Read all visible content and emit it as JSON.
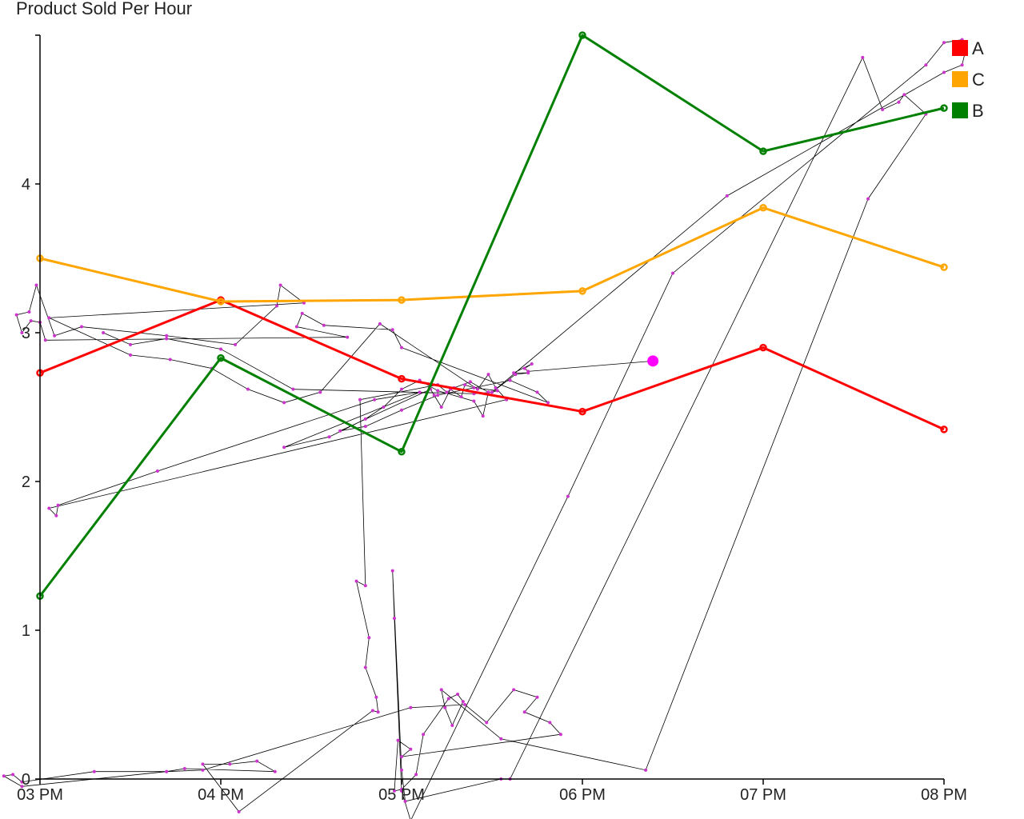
{
  "chart_data": {
    "type": "line",
    "title": "Product Sold Per Hour",
    "xlabel": "",
    "ylabel": "",
    "categories": [
      "03 PM",
      "04 PM",
      "05 PM",
      "06 PM",
      "07 PM",
      "08 PM"
    ],
    "yticks": [
      "0",
      "1",
      "2",
      "3",
      "4"
    ],
    "ylim": [
      0,
      5
    ],
    "grid": false,
    "legend_position": "top-right",
    "series": [
      {
        "name": "A",
        "color": "#ff0000",
        "values": [
          2.73,
          3.22,
          2.69,
          2.47,
          2.9,
          2.35
        ]
      },
      {
        "name": "C",
        "color": "#ffa500",
        "values": [
          3.5,
          3.21,
          3.22,
          3.28,
          3.84,
          3.44
        ]
      },
      {
        "name": "B",
        "color": "#008000",
        "values": [
          1.23,
          2.83,
          2.2,
          5.0,
          4.22,
          4.51
        ]
      }
    ],
    "overlay_trace": {
      "color": "#000000",
      "marker_color": "#cc33cc",
      "cursor_color": "#ff00ff",
      "cursor": {
        "x": 3.39,
        "y": 2.81
      },
      "points": [
        [
          3.39,
          2.81
        ],
        [
          2.7,
          2.74
        ],
        [
          2.68,
          2.76
        ],
        [
          2.72,
          2.79
        ],
        [
          2.62,
          2.73
        ],
        [
          2.7,
          2.73
        ],
        [
          2.63,
          2.72
        ],
        [
          2.5,
          2.6
        ],
        [
          2.53,
          2.61
        ],
        [
          2.4,
          2.63
        ],
        [
          2.35,
          2.65
        ],
        [
          2.33,
          2.57
        ],
        [
          2.27,
          2.62
        ],
        [
          2.22,
          2.5
        ],
        [
          2.18,
          2.58
        ],
        [
          2.16,
          2.62
        ],
        [
          1.66,
          2.34
        ],
        [
          1.8,
          2.37
        ],
        [
          2.0,
          2.48
        ],
        [
          2.2,
          2.58
        ],
        [
          2.6,
          2.68
        ],
        [
          2.75,
          2.6
        ],
        [
          2.81,
          2.53
        ],
        [
          2.0,
          2.9
        ],
        [
          1.95,
          3.02
        ],
        [
          1.57,
          3.05
        ],
        [
          1.45,
          3.13
        ],
        [
          1.42,
          3.04
        ],
        [
          1.7,
          2.97
        ],
        [
          0.03,
          2.95
        ],
        [
          0.0,
          3.07
        ],
        [
          -0.05,
          3.08
        ],
        [
          -0.1,
          3.0
        ],
        [
          -0.13,
          3.12
        ],
        [
          -0.06,
          3.14
        ],
        [
          -0.02,
          3.32
        ],
        [
          0.08,
          2.98
        ],
        [
          0.23,
          3.04
        ],
        [
          0.7,
          2.98
        ],
        [
          1.08,
          2.92
        ],
        [
          1.31,
          3.18
        ],
        [
          1.33,
          3.32
        ],
        [
          1.46,
          3.2
        ],
        [
          0.05,
          3.1
        ],
        [
          0.5,
          2.85
        ],
        [
          0.72,
          2.82
        ],
        [
          0.95,
          2.76
        ],
        [
          1.15,
          2.62
        ],
        [
          1.35,
          2.53
        ],
        [
          1.55,
          2.6
        ],
        [
          1.88,
          3.06
        ],
        [
          2.42,
          2.62
        ],
        [
          2.48,
          2.72
        ],
        [
          2.52,
          2.63
        ],
        [
          2.58,
          2.55
        ],
        [
          0.05,
          1.82
        ],
        [
          0.09,
          1.77
        ],
        [
          0.1,
          1.84
        ],
        [
          0.65,
          2.07
        ],
        [
          1.85,
          2.55
        ],
        [
          2.1,
          2.6
        ],
        [
          1.35,
          2.23
        ],
        [
          1.6,
          2.3
        ],
        [
          1.8,
          2.42
        ],
        [
          1.9,
          2.5
        ],
        [
          2.0,
          2.62
        ],
        [
          2.1,
          2.68
        ],
        [
          2.2,
          2.61
        ],
        [
          2.4,
          2.54
        ],
        [
          2.45,
          2.44
        ],
        [
          2.48,
          2.6
        ],
        [
          2.38,
          2.67
        ],
        [
          2.29,
          2.63
        ],
        [
          2.25,
          2.6
        ],
        [
          2.2,
          2.65
        ],
        [
          1.77,
          2.55
        ],
        [
          1.8,
          1.3
        ],
        [
          1.75,
          1.33
        ],
        [
          1.82,
          0.95
        ],
        [
          1.8,
          0.75
        ],
        [
          1.86,
          0.55
        ],
        [
          1.87,
          0.45
        ],
        [
          1.84,
          0.46
        ],
        [
          1.1,
          -0.22
        ],
        [
          0.9,
          0.1
        ],
        [
          1.05,
          0.1
        ],
        [
          1.2,
          0.12
        ],
        [
          1.3,
          0.05
        ],
        [
          0.8,
          0.07
        ],
        [
          0.7,
          0.05
        ],
        [
          0.3,
          0.05
        ],
        [
          -0.1,
          -0.02
        ],
        [
          -0.15,
          0.03
        ],
        [
          -0.2,
          0.02
        ],
        [
          -0.1,
          -0.05
        ],
        [
          0.7,
          0.05
        ],
        [
          0.9,
          0.06
        ],
        [
          2.05,
          0.48
        ],
        [
          2.35,
          0.5
        ],
        [
          2.47,
          0.38
        ],
        [
          2.62,
          0.6
        ],
        [
          2.75,
          0.55
        ],
        [
          2.68,
          0.45
        ],
        [
          2.82,
          0.38
        ],
        [
          2.88,
          0.3
        ],
        [
          2.0,
          0.15
        ],
        [
          2.05,
          0.2
        ],
        [
          1.98,
          0.26
        ],
        [
          1.96,
          -0.08
        ],
        [
          2.0,
          -0.07
        ],
        [
          2.08,
          0.03
        ],
        [
          2.12,
          0.3
        ],
        [
          2.26,
          0.54
        ],
        [
          2.31,
          0.57
        ],
        [
          2.34,
          0.52
        ],
        [
          2.28,
          0.36
        ],
        [
          2.24,
          0.48
        ],
        [
          2.22,
          0.6
        ],
        [
          2.55,
          0.27
        ],
        [
          3.35,
          0.06
        ],
        [
          4.58,
          3.9
        ],
        [
          4.9,
          4.47
        ],
        [
          4.78,
          4.6
        ],
        [
          4.75,
          4.55
        ],
        [
          4.66,
          4.5
        ],
        [
          4.55,
          4.85
        ],
        [
          2.6,
          0.0
        ],
        [
          2.55,
          0.0
        ],
        [
          2.02,
          -0.15
        ],
        [
          2.0,
          0.06
        ],
        [
          1.95,
          1.4
        ],
        [
          1.96,
          1.08
        ],
        [
          2.0,
          -0.08
        ],
        [
          2.05,
          -0.28
        ],
        [
          2.92,
          1.9
        ],
        [
          3.5,
          3.4
        ],
        [
          4.9,
          4.8
        ],
        [
          5.0,
          4.95
        ],
        [
          5.1,
          4.97
        ],
        [
          5.12,
          4.9
        ],
        [
          5.1,
          4.8
        ],
        [
          5.0,
          4.75
        ],
        [
          3.8,
          3.92
        ],
        [
          2.5,
          2.6
        ],
        [
          2.4,
          2.59
        ],
        [
          1.4,
          2.62
        ],
        [
          1.0,
          2.89
        ],
        [
          0.7,
          2.96
        ],
        [
          0.5,
          2.92
        ],
        [
          0.35,
          3.0
        ]
      ]
    }
  }
}
